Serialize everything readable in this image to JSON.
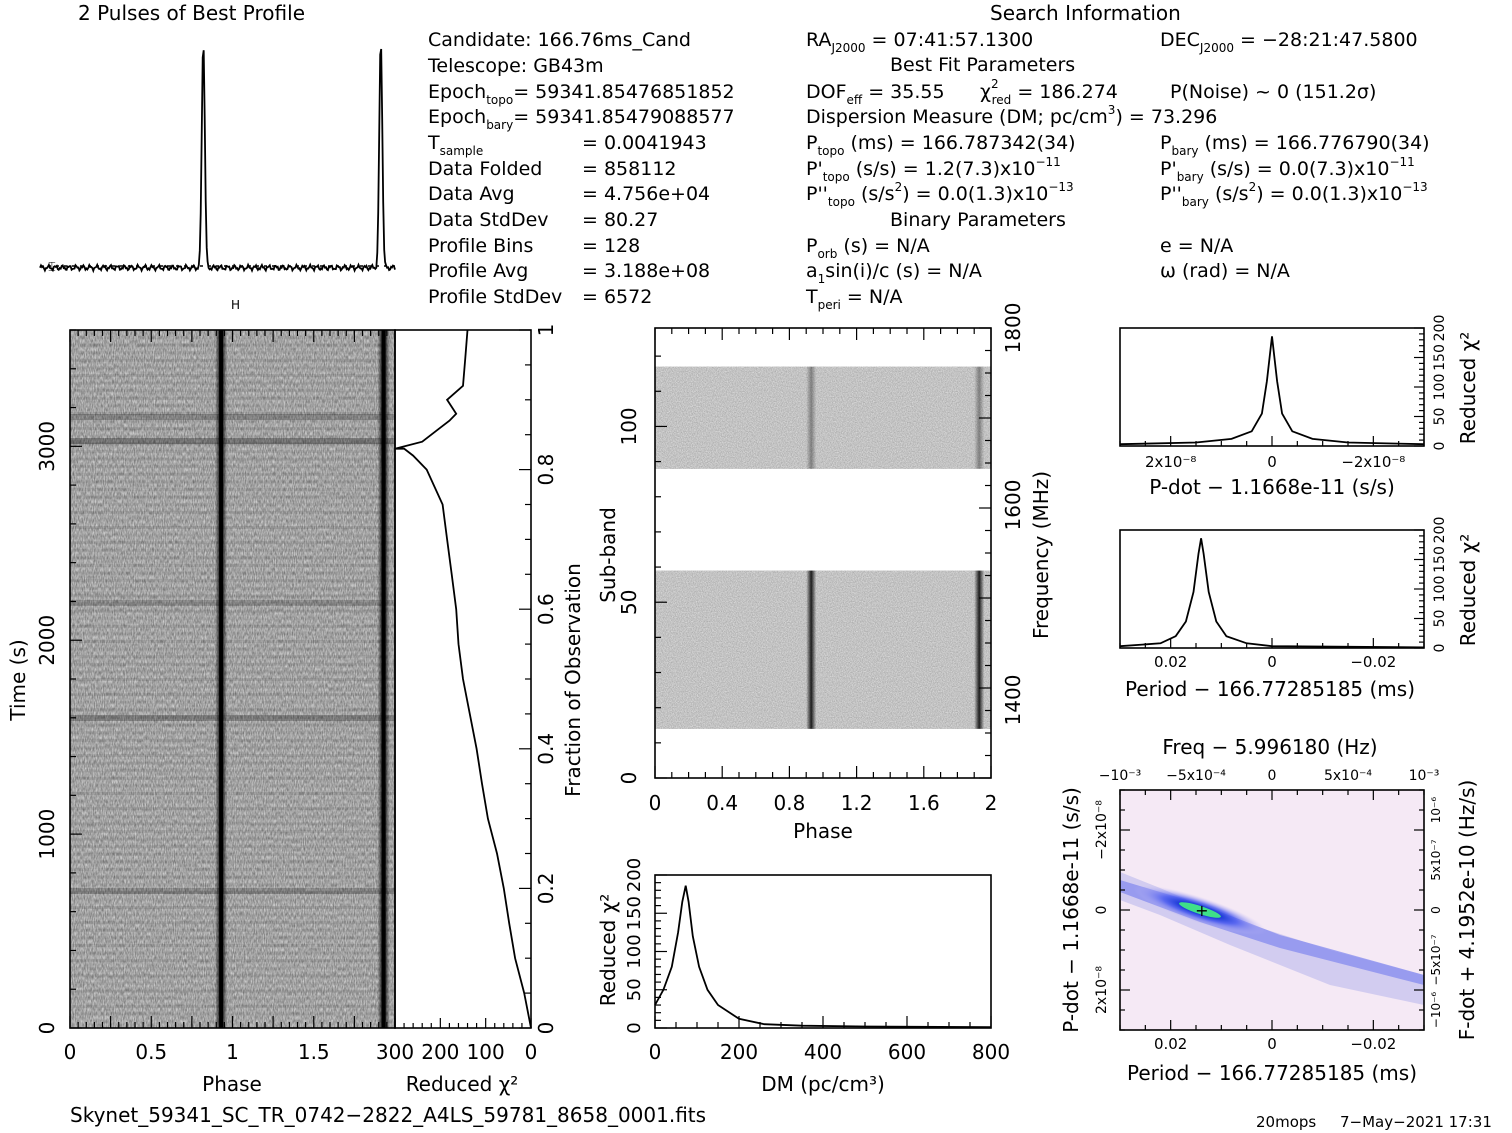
{
  "header": {
    "profile_title": "2 Pulses of Best Profile",
    "search_title": "Search Information",
    "best_fit_title": "Best Fit Parameters",
    "binary_title": "Binary Parameters"
  },
  "info": [
    {
      "label": "Candidate:  166.76ms_Cand"
    },
    {
      "label": "Telescope:  GB43m"
    },
    {
      "label": "Epoch",
      "sub": "topo",
      "value": "= 59341.85476851852"
    },
    {
      "label": "Epoch",
      "sub": "bary",
      "value": "= 59341.85479088577"
    },
    {
      "label": "T",
      "sub": "sample",
      "value": "=   0.0041943"
    },
    {
      "label": "Data Folded",
      "value": "=   858112"
    },
    {
      "label": "Data Avg",
      "value": "=   4.756e+04"
    },
    {
      "label": "Data StdDev",
      "value": "=   80.27"
    },
    {
      "label": "Profile Bins",
      "value": "=   128"
    },
    {
      "label": "Profile Avg",
      "value": "=   3.188e+08"
    },
    {
      "label": "Profile StdDev",
      "value": "=   6572"
    }
  ],
  "search": {
    "ra_prefix": "RA",
    "ra_sub": "J2000",
    "ra_value": " = 07:41:57.1300",
    "dec_prefix": "DEC",
    "dec_sub": "J2000",
    "dec_value": " = −28:21:47.5800",
    "dof_prefix": "DOF",
    "dof_sub": "eff",
    "dof_value": " = 35.55",
    "chi_prefix": "χ",
    "chi_sup": "2",
    "chi_sub": "red",
    "chi_value": " = 186.274",
    "pnoise": "P(Noise) ~ 0    (151.2σ)",
    "dm_text": "Dispersion Measure (DM; pc/cm",
    "dm_sup": "3",
    "dm_value": ") = 73.296",
    "ptopo_prefix": "P",
    "ptopo_sub": "topo",
    "ptopo_value": " (ms) =  166.787342(34)",
    "pbary_prefix": "P",
    "pbary_sub": "bary",
    "pbary_value": " (ms) =  166.776790(34)",
    "pdtopo_prefix": "P'",
    "pdtopo_sub": "topo",
    "pdtopo_value": " (s/s) =  1.2(7.3)x10",
    "pdtopo_exp": "−11",
    "pdbary_prefix": "P'",
    "pdbary_sub": "bary",
    "pdbary_value": " (s/s) = 0.0(7.3)x10",
    "pdbary_exp": "−11",
    "pddtopo_prefix": "P''",
    "pddtopo_sub": "topo",
    "pddtopo_value": " (s/s",
    "pddtopo_sup": "2",
    "pddtopo_value2": ") = 0.0(1.3)x10",
    "pddtopo_exp": "−13",
    "pddbary_prefix": "P''",
    "pddbary_sub": "bary",
    "pddbary_value": " (s/s",
    "pddbary_sup": "2",
    "pddbary_value2": ") = 0.0(1.3)x10",
    "pddbary_exp": "−13",
    "porb_prefix": "P",
    "porb_sub": "orb",
    "porb_value": " (s) = N/A",
    "e_text": "e = N/A",
    "a1_prefix": "a",
    "a1_sub": "1",
    "a1_value": "sin(i)/c (s) = N/A",
    "omega_text": "ω (rad) = N/A",
    "tperi_prefix": "T",
    "tperi_sub": "peri",
    "tperi_value": " = N/A"
  },
  "footer": {
    "filename": "Skynet_59341_SC_TR_0742−2822_A4LS_59781_8658_0001.fits",
    "user": "20mops",
    "date": "7−May−2021 17:31"
  },
  "chart_data": [
    {
      "type": "line",
      "id": "profile",
      "title": "2 Pulses of Best Profile",
      "x": [
        0,
        0.88,
        0.9,
        0.92,
        0.94,
        0.96,
        1.0,
        1.88,
        1.9,
        1.92,
        1.94,
        1.96,
        2.0
      ],
      "y": [
        0.03,
        0.03,
        0.2,
        1.0,
        0.2,
        0.03,
        0.03,
        0.03,
        0.2,
        1.0,
        0.2,
        0.03,
        0.03
      ],
      "xlim": [
        0,
        2
      ]
    },
    {
      "type": "heatmap",
      "id": "time-phase",
      "xlabel": "Phase",
      "ylabel": "Time (s)",
      "x_ticks": [
        "0",
        "0.5",
        "1",
        "1.5"
      ],
      "y_ticks": [
        "0",
        "1000",
        "2000",
        "3000"
      ],
      "xlim": [
        0,
        2
      ],
      "ylim": [
        0,
        3600
      ],
      "pulse_phase": 0.93
    },
    {
      "type": "line",
      "id": "time-chi2",
      "xlabel": "Reduced χ²",
      "ylabel": "Fraction of Observation",
      "x_ticks": [
        "300",
        "200",
        "100",
        "0"
      ],
      "y_ticks": [
        "0",
        "0.2",
        "0.4",
        "0.6",
        "0.8",
        "1"
      ],
      "xlim": [
        300,
        0
      ],
      "ylim": [
        0,
        1
      ],
      "x": [
        0,
        15,
        35,
        48,
        60,
        75,
        95,
        108,
        120,
        135,
        150,
        160,
        165,
        175,
        185,
        195,
        230,
        260,
        280,
        300,
        240,
        200,
        180,
        165,
        185,
        150,
        145,
        140
      ],
      "y": [
        0.0,
        0.05,
        0.1,
        0.15,
        0.2,
        0.25,
        0.3,
        0.35,
        0.4,
        0.45,
        0.5,
        0.55,
        0.6,
        0.65,
        0.7,
        0.75,
        0.8,
        0.82,
        0.83,
        0.83,
        0.84,
        0.86,
        0.87,
        0.88,
        0.9,
        0.92,
        0.96,
        1.0
      ]
    },
    {
      "type": "heatmap",
      "id": "subband-phase",
      "xlabel": "Phase",
      "ylabel": "Sub-band",
      "y2label": "Frequency (MHz)",
      "x_ticks": [
        "0",
        "0.4",
        "0.8",
        "1.2",
        "1.6",
        "2"
      ],
      "y_ticks": [
        "0",
        "50",
        "100"
      ],
      "y2_ticks": [
        "1400",
        "1600",
        "1800"
      ],
      "xlim": [
        0,
        2
      ],
      "ylim": [
        0,
        128
      ],
      "filled_ranges": [
        [
          14,
          59
        ],
        [
          88,
          117
        ]
      ],
      "pulse_phase": 0.93
    },
    {
      "type": "line",
      "id": "dm-chi2",
      "xlabel": "DM (pc/cm³)",
      "ylabel": "Reduced χ²",
      "x_ticks": [
        "0",
        "200",
        "400",
        "600",
        "800"
      ],
      "y_ticks": [
        "0",
        "50",
        "100",
        "150",
        "200"
      ],
      "xlim": [
        0,
        800
      ],
      "ylim": [
        0,
        200
      ],
      "x": [
        0,
        20,
        40,
        55,
        65,
        73,
        80,
        90,
        105,
        125,
        150,
        200,
        260,
        350,
        500,
        800
      ],
      "y": [
        30,
        50,
        80,
        125,
        165,
        186,
        165,
        120,
        80,
        50,
        30,
        12,
        5,
        3,
        2,
        1
      ]
    },
    {
      "type": "line",
      "id": "pdot-chi2",
      "xlabel": "P-dot − 1.1668e-11 (s/s)",
      "ylabel": "Reduced χ²",
      "x_ticks": [
        "2x10⁻⁸",
        "0",
        "−2x10⁻⁸"
      ],
      "y_ticks": [
        "0",
        "50",
        "100",
        "150",
        "200"
      ],
      "xlim": [
        3e-08,
        -3e-08
      ],
      "ylim": [
        0,
        200
      ],
      "x": [
        3e-08,
        1.5e-08,
        8e-09,
        4e-09,
        2e-09,
        1e-09,
        0,
        -1e-09,
        -2e-09,
        -4e-09,
        -8e-09,
        -1.5e-08,
        -3e-08
      ],
      "y": [
        3,
        6,
        12,
        25,
        55,
        110,
        186,
        110,
        55,
        25,
        12,
        6,
        3
      ]
    },
    {
      "type": "line",
      "id": "period-chi2",
      "xlabel": "Period − 166.77285185 (ms)",
      "ylabel": "Reduced χ²",
      "x_ticks": [
        "0.02",
        "0",
        "−0.02"
      ],
      "y_ticks": [
        "0",
        "50",
        "100",
        "150",
        "200"
      ],
      "xlim": [
        0.03,
        -0.03
      ],
      "ylim": [
        0,
        200
      ],
      "x": [
        0.03,
        0.022,
        0.019,
        0.017,
        0.0155,
        0.0145,
        0.014,
        0.0135,
        0.0125,
        0.011,
        0.009,
        0.005,
        0,
        -0.03
      ],
      "y": [
        3,
        8,
        20,
        45,
        95,
        160,
        186,
        160,
        95,
        45,
        20,
        8,
        3,
        1
      ]
    },
    {
      "type": "heatmap",
      "id": "period-pdot",
      "title": "Freq − 5.996180 (Hz)",
      "xlabel": "Period − 166.77285185 (ms)",
      "ylabel": "P-dot − 1.1668e-11 (s/s)",
      "y2label": "F-dot + 4.1952e-10 (Hz/s)",
      "x_ticks": [
        "0.02",
        "0",
        "−0.02"
      ],
      "x2_ticks": [
        "−10⁻³",
        "−5x10⁻⁴",
        "0",
        "5x10⁻⁴",
        "10⁻³"
      ],
      "y_ticks": [
        "2x10⁻⁸",
        "0",
        "−2x10⁻⁸"
      ],
      "y2_ticks": [
        "−10⁻⁶",
        "−5x10⁻⁷",
        "0",
        "5x10⁻⁷",
        "10⁻⁶"
      ],
      "best": {
        "period": 0.014,
        "pdot": 0
      }
    }
  ]
}
